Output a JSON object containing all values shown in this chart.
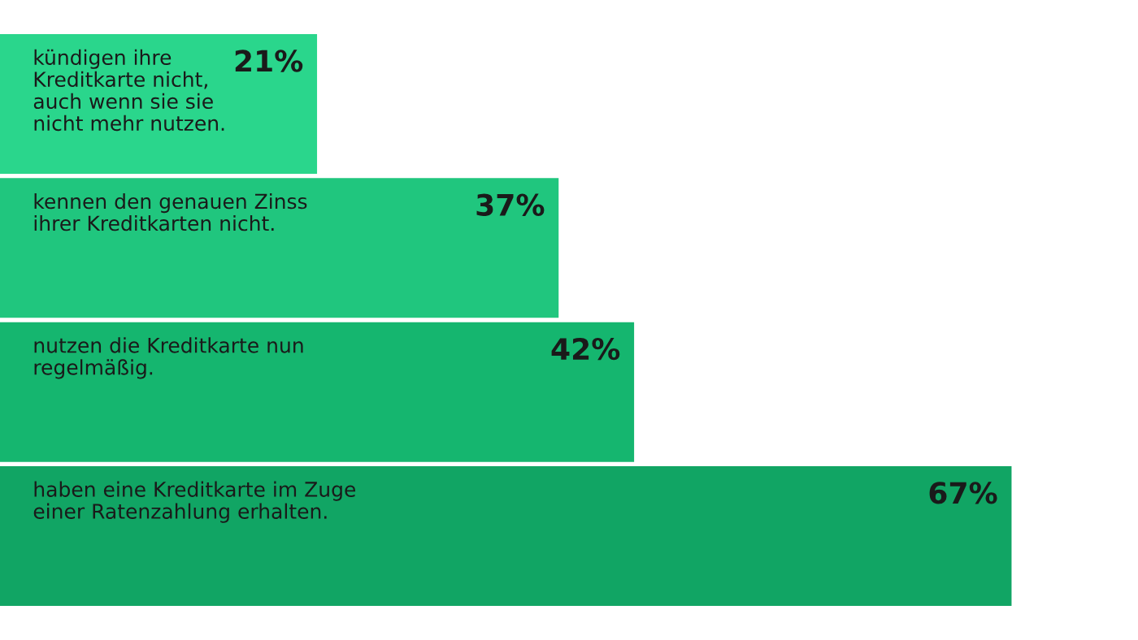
{
  "chart_data": {
    "type": "bar",
    "orientation": "horizontal",
    "categories": [
      "kündigen ihre Kreditkarte nicht, auch wenn sie sie nicht mehr nutzen.",
      "kennen den genauen Zinss ihrer Kreditkarten nicht.",
      "nutzen die Kreditkarte nun regelmäßig.",
      "haben eine Kreditkarte im Zuge einer Ratenzahlung erhalten."
    ],
    "values": [
      21,
      37,
      42,
      67
    ],
    "colors": [
      "#2ad68c",
      "#20c67e",
      "#15b66f",
      "#11a564"
    ],
    "value_labels": [
      "21%",
      "37%",
      "42%",
      "67%"
    ]
  }
}
